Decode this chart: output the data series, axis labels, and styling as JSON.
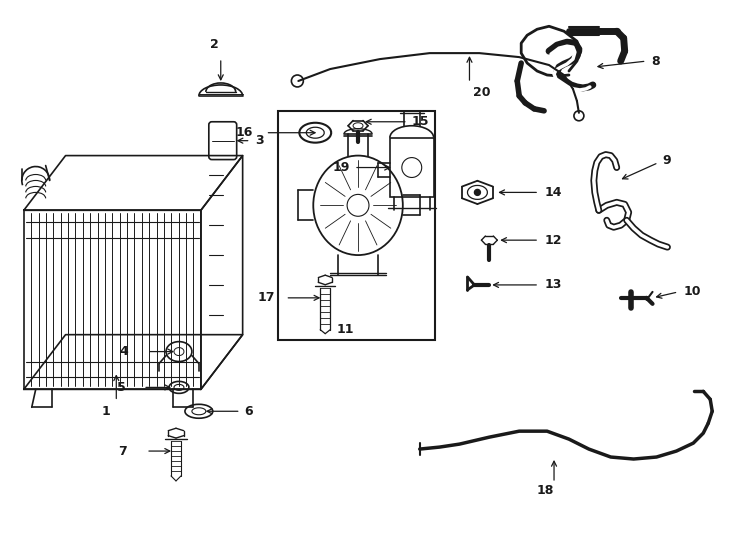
{
  "background_color": "#ffffff",
  "line_color": "#1a1a1a",
  "fig_w": 7.34,
  "fig_h": 5.4,
  "dpi": 100
}
